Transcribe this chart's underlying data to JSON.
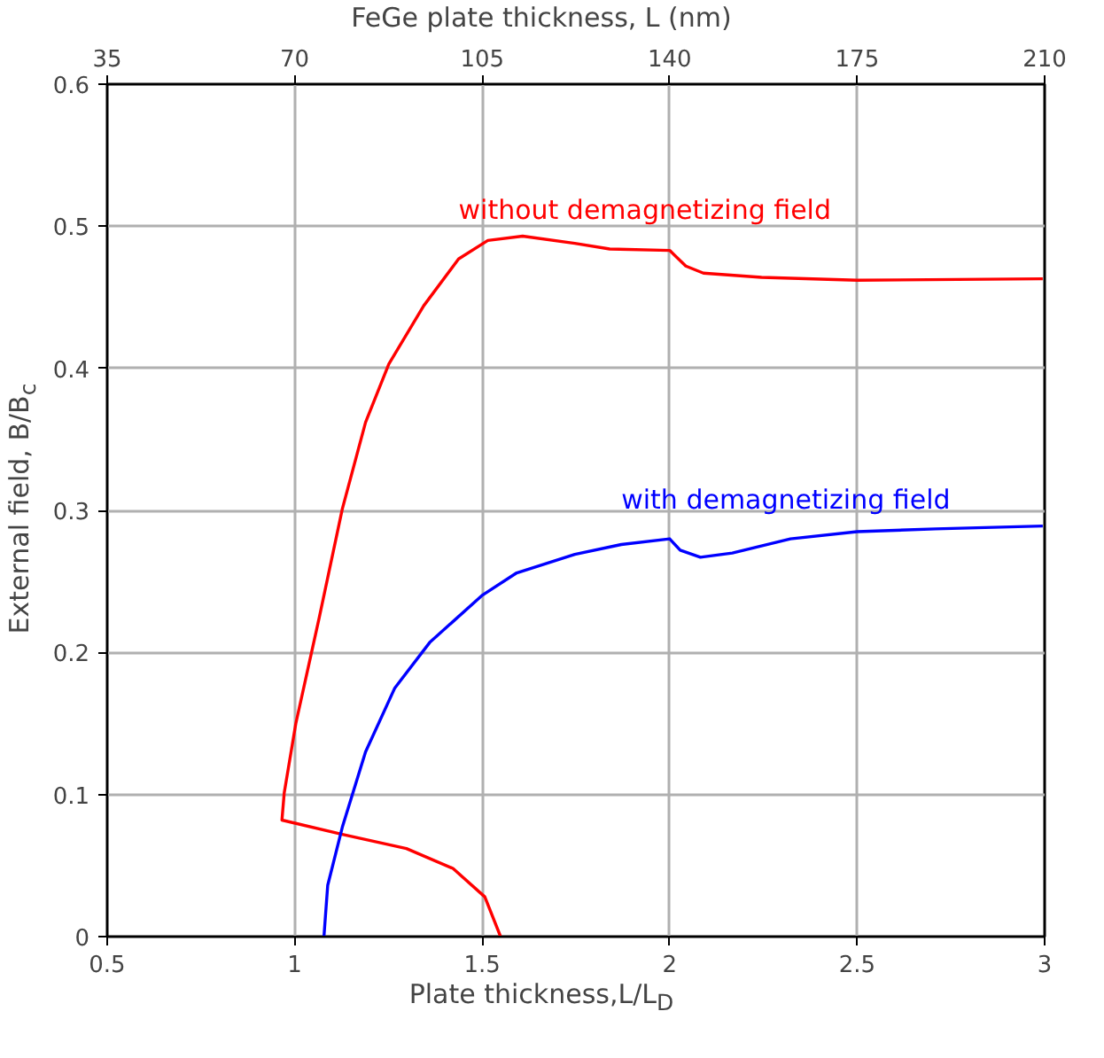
{
  "chart_data": {
    "type": "line",
    "xlabel": "Plate thickness,L/L$_{D}$",
    "ylabel": "External field, B/B$_{c}$",
    "x2label": "FeGe plate thickness, L (nm)",
    "xlim": [
      0.5,
      3
    ],
    "xticks": [
      0.5,
      1,
      1.5,
      2,
      2.5,
      3
    ],
    "ylim": [
      0,
      0.6
    ],
    "yticks": [
      0,
      0.1,
      0.2,
      0.3,
      0.4,
      0.5,
      0.6
    ],
    "x2lim": [
      35,
      210
    ],
    "x2ticks": [
      35,
      70,
      105,
      140,
      175,
      210
    ],
    "grid": true,
    "marker": "none",
    "line_style": "solid",
    "series": [
      {
        "name": "without demagnetizing field",
        "color": "#ff0000",
        "x": [
          1.549,
          1.507,
          1.422,
          1.298,
          1.127,
          0.966,
          0.972,
          1.003,
          1.065,
          1.127,
          1.189,
          1.251,
          1.344,
          1.437,
          1.515,
          1.608,
          1.747,
          1.84,
          2.0,
          2.043,
          2.09,
          2.245,
          2.5,
          2.995
        ],
        "values": [
          0,
          0.028,
          0.048,
          0.062,
          0.072,
          0.082,
          0.101,
          0.15,
          0.224,
          0.301,
          0.362,
          0.403,
          0.444,
          0.477,
          0.49,
          0.493,
          0.488,
          0.484,
          0.483,
          0.472,
          0.467,
          0.464,
          0.462,
          0.463
        ]
      },
      {
        "name": "with demagnetizing field",
        "color": "#0000ff",
        "x": [
          1.078,
          1.088,
          1.127,
          1.189,
          1.267,
          1.36,
          1.499,
          1.592,
          1.747,
          1.871,
          2.0,
          2.028,
          2.082,
          2.167,
          2.322,
          2.5,
          2.709,
          2.995
        ],
        "values": [
          0,
          0.036,
          0.077,
          0.13,
          0.175,
          0.207,
          0.24,
          0.256,
          0.269,
          0.276,
          0.28,
          0.272,
          0.267,
          0.27,
          0.28,
          0.285,
          0.287,
          0.289
        ]
      }
    ]
  }
}
